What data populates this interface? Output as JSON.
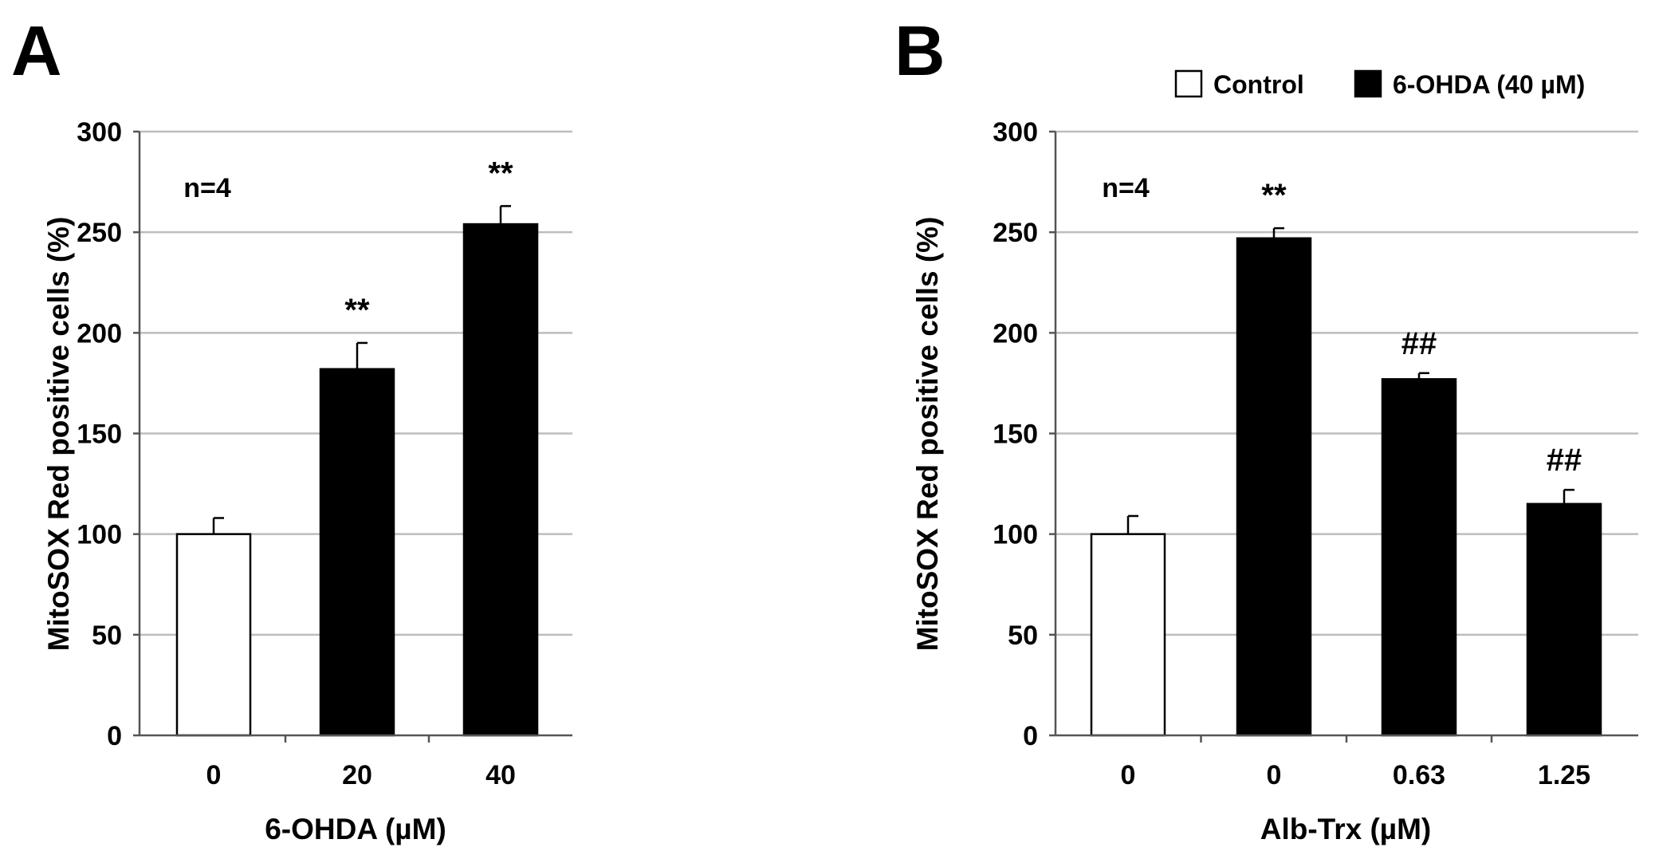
{
  "chart_data": [
    {
      "type": "bar",
      "panel_label": "A",
      "categories": [
        "0",
        "20",
        "40"
      ],
      "values": [
        100,
        182,
        254
      ],
      "errors": [
        8,
        13,
        9
      ],
      "fills": [
        "#ffffff",
        "#000000",
        "#000000"
      ],
      "significance": [
        "",
        "**",
        "**"
      ],
      "annotation": "n=4",
      "xlabel": "6-OHDA (µM)",
      "ylabel": "MitoSOX Red positive cells (%)",
      "ylim": [
        0,
        300
      ],
      "yticks": [
        "0",
        "50",
        "100",
        "150",
        "200",
        "250",
        "300"
      ],
      "grid": true
    },
    {
      "type": "bar",
      "panel_label": "B",
      "categories": [
        "0",
        "0",
        "0.63",
        "1.25"
      ],
      "values": [
        100,
        247,
        177,
        115
      ],
      "errors": [
        9,
        5,
        3,
        7
      ],
      "fills": [
        "#ffffff",
        "#000000",
        "#000000",
        "#000000"
      ],
      "significance": [
        "",
        "**",
        "##",
        "##"
      ],
      "annotation": "n=4",
      "xlabel": "Alb-Trx (µM)",
      "ylabel": "MitoSOX Red positive cells (%)",
      "ylim": [
        0,
        300
      ],
      "yticks": [
        "0",
        "50",
        "100",
        "150",
        "200",
        "250",
        "300"
      ],
      "grid": true,
      "legend": [
        {
          "label": "Control",
          "color": "#ffffff"
        },
        {
          "label": "6-OHDA (40 µM)",
          "color": "#000000"
        }
      ],
      "legend_position": "top-right"
    }
  ]
}
